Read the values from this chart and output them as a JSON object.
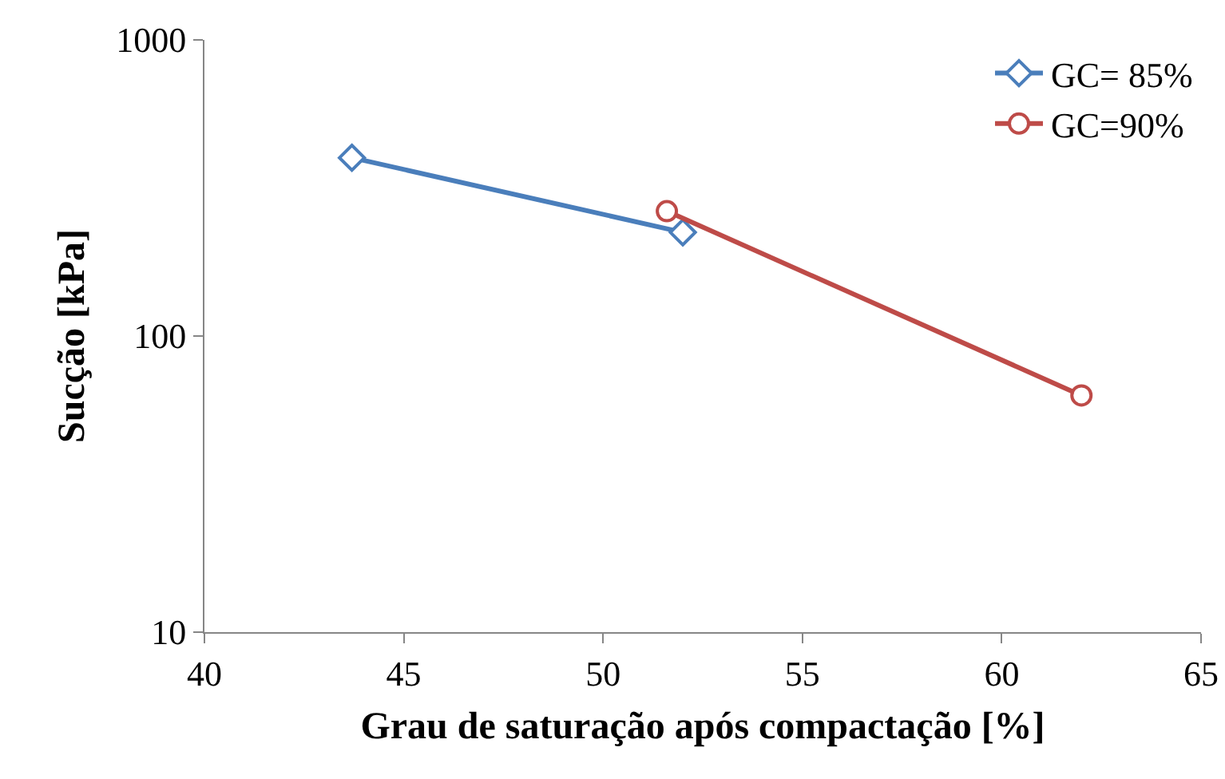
{
  "chart_data": {
    "type": "line",
    "xlabel": "Grau de saturação após compactação [%]",
    "ylabel": "Sucção [kPa]",
    "series": [
      {
        "name": "GC= 85%",
        "color": "#4a7ebb",
        "marker": "diamond",
        "x": [
          43.7,
          52.0
        ],
        "values": [
          400,
          224
        ]
      },
      {
        "name": "GC=90%",
        "color": "#be4b48",
        "marker": "circle",
        "x": [
          51.6,
          62.0
        ],
        "values": [
          264,
          63
        ]
      }
    ],
    "xlim": [
      40,
      65
    ],
    "xticks": [
      40,
      45,
      50,
      55,
      60,
      65
    ],
    "ylim": [
      10,
      1000
    ],
    "yticks": [
      10,
      100,
      1000
    ],
    "log": "y",
    "grid": false,
    "legend": "top right",
    "line_style": "solid"
  }
}
